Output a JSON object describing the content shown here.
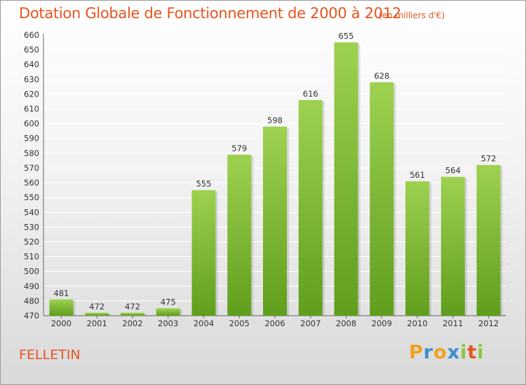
{
  "chart_data": {
    "type": "bar",
    "title": "Dotation Globale de Fonctionnement de 2000 à 2012",
    "subtitle": "(en milliers d'€)",
    "xlabel": "",
    "ylabel": "",
    "categories": [
      "2000",
      "2001",
      "2002",
      "2003",
      "2004",
      "2005",
      "2006",
      "2007",
      "2008",
      "2009",
      "2010",
      "2011",
      "2012"
    ],
    "values": [
      481,
      472,
      472,
      475,
      555,
      579,
      598,
      616,
      655,
      628,
      561,
      564,
      572
    ],
    "ylim": [
      470,
      660
    ],
    "ytick_step": 10,
    "grid": true,
    "bar_color_top": "#9ed150",
    "bar_color_bottom": "#5f9e1c"
  },
  "commune": "FELLETIN",
  "logo": {
    "text": "Proxiti",
    "letters": [
      "P",
      "r",
      "o",
      "x",
      "i",
      "t",
      "i"
    ]
  },
  "colors": {
    "accent": "#e8541e",
    "grid": "#ffffff"
  }
}
